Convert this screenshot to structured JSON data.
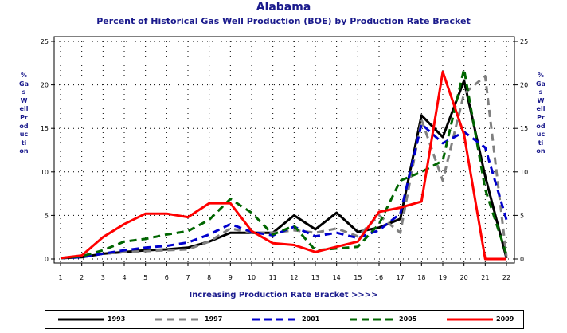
{
  "chart_data": {
    "type": "line",
    "title": "Alabama",
    "subtitle": "Percent of Historical Gas Well Production (BOE) by Production Rate Bracket",
    "xlabel": "Increasing Production Rate Bracket >>>>",
    "ylabel": "% Gas Well Production",
    "x": [
      1,
      2,
      3,
      4,
      5,
      6,
      7,
      8,
      9,
      10,
      11,
      12,
      13,
      14,
      15,
      16,
      17,
      18,
      19,
      20,
      21,
      22
    ],
    "ylim": [
      0,
      25
    ],
    "yticks": [
      0,
      5,
      10,
      15,
      20,
      25
    ],
    "grid": true,
    "legend_position": "bottom",
    "series": [
      {
        "name": "1993",
        "color": "#000000",
        "dash": "solid",
        "values": [
          0.1,
          0.2,
          0.6,
          0.8,
          1.0,
          1.1,
          1.3,
          2.0,
          3.0,
          3.0,
          3.0,
          5.0,
          3.4,
          5.3,
          3.1,
          3.6,
          4.6,
          16.5,
          14.0,
          20.5,
          9.5,
          0.1
        ]
      },
      {
        "name": "1997",
        "color": "#808080",
        "dash": "dash",
        "values": [
          0.1,
          0.2,
          0.6,
          0.8,
          0.9,
          1.0,
          1.1,
          2.0,
          3.5,
          3.0,
          3.0,
          3.3,
          3.0,
          3.5,
          2.6,
          5.0,
          3.0,
          16.0,
          9.0,
          19.0,
          21.0,
          0.3
        ]
      },
      {
        "name": "2001",
        "color": "#0000cc",
        "dash": "dash",
        "values": [
          0.1,
          0.2,
          0.6,
          1.0,
          1.3,
          1.5,
          1.9,
          2.8,
          4.0,
          3.1,
          2.7,
          3.7,
          2.6,
          3.0,
          2.4,
          3.3,
          5.2,
          15.5,
          13.3,
          14.6,
          12.8,
          4.5
        ]
      },
      {
        "name": "2005",
        "color": "#006600",
        "dash": "dash",
        "values": [
          0.1,
          0.3,
          1.0,
          2.0,
          2.3,
          2.8,
          3.2,
          4.5,
          6.9,
          5.3,
          2.8,
          3.8,
          1.0,
          1.2,
          1.4,
          4.0,
          9.0,
          10.0,
          11.3,
          21.8,
          8.0,
          0.5
        ]
      },
      {
        "name": "2009",
        "color": "#ff0000",
        "dash": "solid",
        "values": [
          0.1,
          0.4,
          2.5,
          4.0,
          5.2,
          5.2,
          4.8,
          6.4,
          6.4,
          3.2,
          1.8,
          1.6,
          0.8,
          1.4,
          2.0,
          5.4,
          5.9,
          6.6,
          21.5,
          14.3,
          0.0,
          0.0
        ]
      }
    ]
  }
}
